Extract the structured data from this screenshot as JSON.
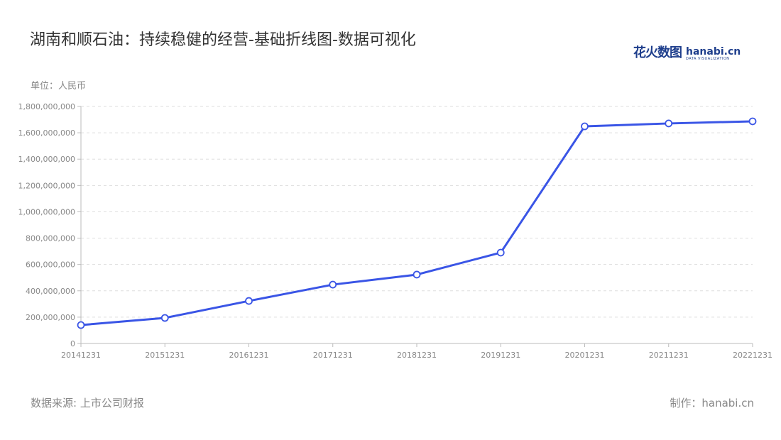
{
  "title": "湖南和顺石油：持续稳健的经营-基础折线图-数据可视化",
  "logo": {
    "cn": "花火数图",
    "en": "hanabi.cn",
    "sub": "DATA VISUALIZATION"
  },
  "footer": {
    "source": "数据来源: 上市公司财报",
    "credit": "制作：hanabi.cn"
  },
  "colors": {
    "line": "#3a55e6",
    "grid": "#dddddd",
    "axis": "#bbbbbb",
    "tick_text": "#888888"
  },
  "chart_data": {
    "type": "line",
    "title": "湖南和顺石油：持续稳健的经营-基础折线图-数据可视化",
    "ylabel": "单位：人民币",
    "xlabel": "",
    "categories": [
      "20141231",
      "20151231",
      "20161231",
      "20171231",
      "20181231",
      "20191231",
      "20201231",
      "20211231",
      "20221231"
    ],
    "values": [
      140000000,
      194000000,
      323000000,
      447000000,
      523000000,
      690000000,
      1649000000,
      1671000000,
      1687000000
    ],
    "ylim": [
      0,
      1800000000
    ],
    "yticks": [
      "0",
      "200,000,000",
      "400,000,000",
      "600,000,000",
      "800,000,000",
      "1,000,000,000",
      "1,200,000,000",
      "1,400,000,000",
      "1,600,000,000",
      "1,800,000,000"
    ],
    "grid": true,
    "legend": "none"
  }
}
